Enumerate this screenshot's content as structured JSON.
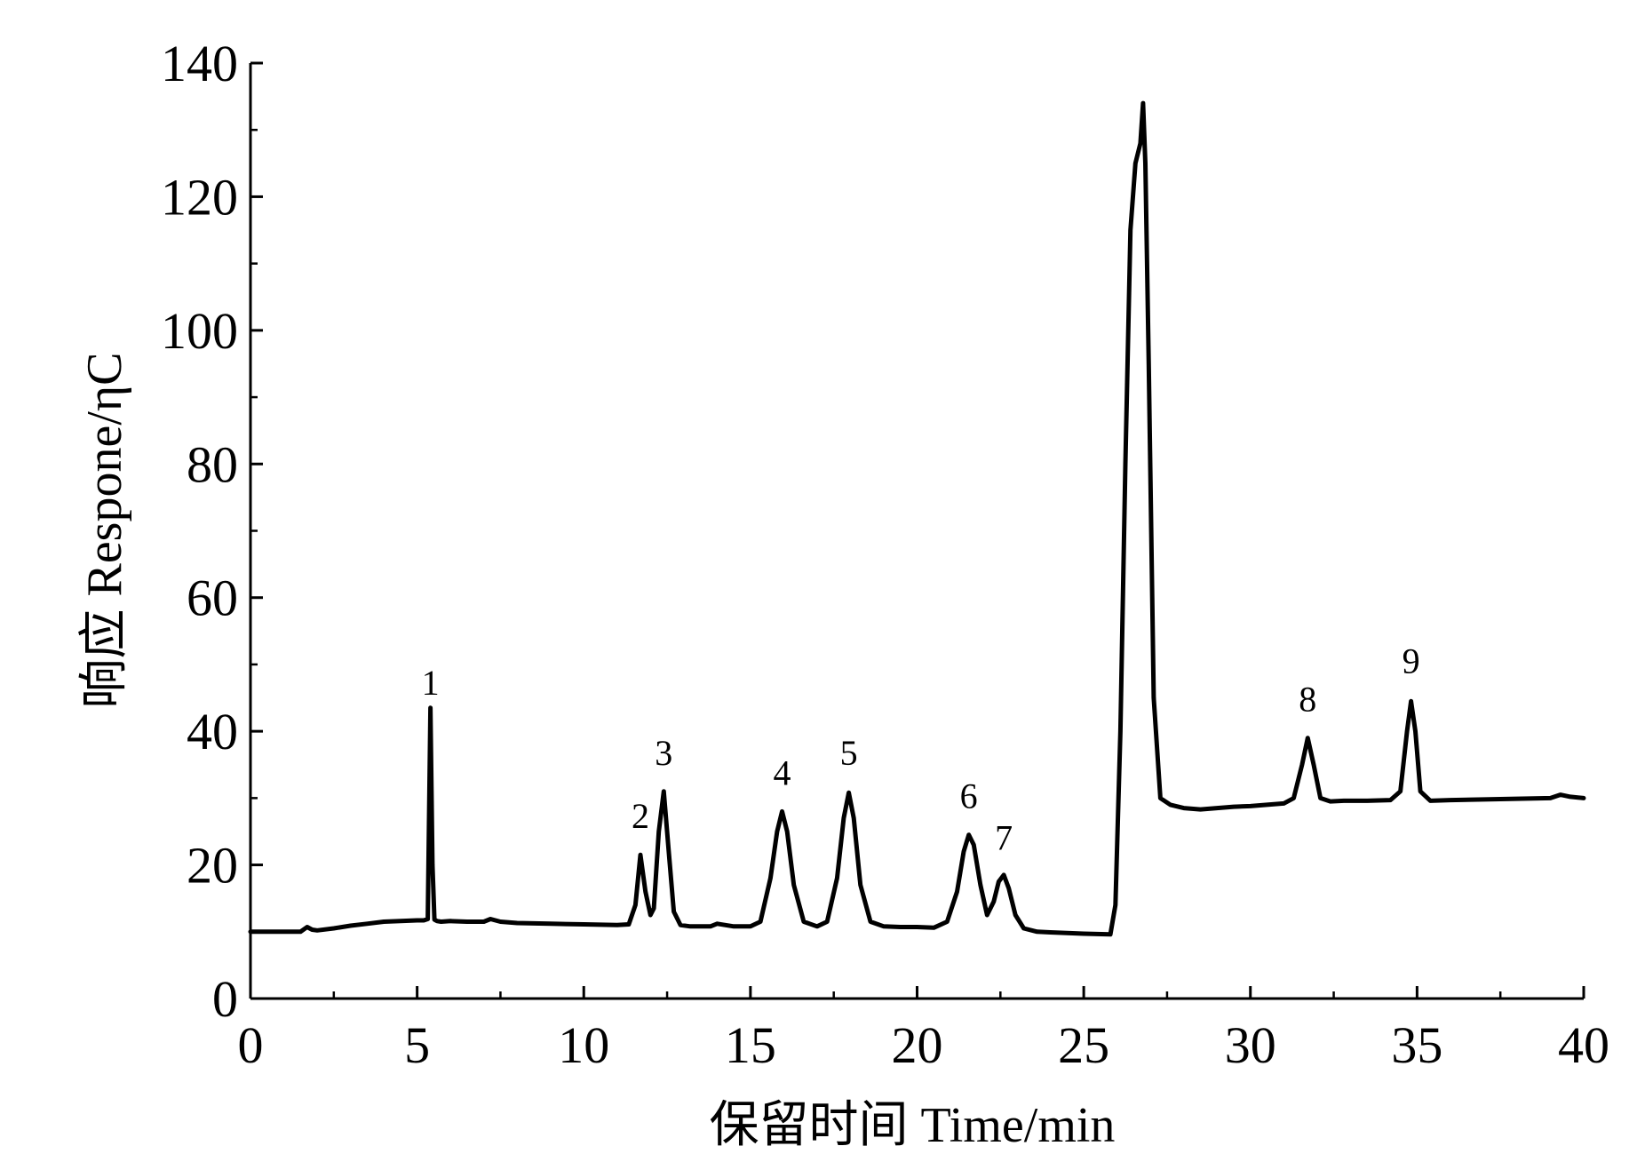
{
  "chart_data": {
    "type": "line",
    "title": "",
    "xlabel": "保留时间 Time/min",
    "ylabel": "响应 Respone/ηC",
    "xlim": [
      0,
      40
    ],
    "ylim": [
      0,
      140
    ],
    "x_ticks": [
      0,
      5,
      10,
      15,
      20,
      25,
      30,
      35,
      40
    ],
    "y_ticks": [
      0,
      20,
      40,
      60,
      80,
      100,
      120,
      140
    ],
    "grid": false,
    "legend": "none",
    "line_color": "#000000",
    "series": [
      {
        "x": [
          0,
          1.5,
          1.7,
          1.85,
          2.0,
          2.5,
          3.0,
          3.5,
          4.0,
          4.5,
          5.0,
          5.2,
          5.32,
          5.4,
          5.46,
          5.52,
          5.6,
          5.72,
          6.0,
          6.5,
          7.0,
          7.2,
          7.5,
          8,
          9,
          10,
          11,
          11.35,
          11.55,
          11.7,
          11.85,
          12.0,
          12.1,
          12.25,
          12.4,
          12.55,
          12.7,
          12.9,
          13.2,
          13.8,
          14.0,
          14.5,
          15.0,
          15.3,
          15.6,
          15.8,
          15.95,
          16.1,
          16.3,
          16.6,
          17.0,
          17.3,
          17.6,
          17.8,
          17.95,
          18.1,
          18.3,
          18.6,
          19.0,
          19.5,
          20.0,
          20.5,
          20.9,
          21.2,
          21.4,
          21.55,
          21.7,
          21.9,
          22.1,
          22.3,
          22.45,
          22.6,
          22.75,
          22.95,
          23.2,
          23.6,
          24.0,
          25.0,
          25.8,
          25.95,
          26.1,
          26.25,
          26.4,
          26.55,
          26.7,
          26.78,
          26.85,
          26.95,
          27.1,
          27.3,
          27.6,
          28.0,
          28.5,
          29.0,
          29.5,
          30.0,
          30.5,
          31.0,
          31.3,
          31.55,
          31.72,
          31.9,
          32.1,
          32.4,
          32.8,
          33.5,
          34.2,
          34.5,
          34.7,
          34.82,
          34.95,
          35.1,
          35.4,
          36,
          37,
          38,
          39,
          39.3,
          39.6,
          40
        ],
        "y": [
          10,
          10,
          10.7,
          10.3,
          10.2,
          10.5,
          10.9,
          11.2,
          11.5,
          11.6,
          11.7,
          11.7,
          11.9,
          43.5,
          20,
          11.8,
          11.6,
          11.5,
          11.6,
          11.5,
          11.5,
          11.9,
          11.5,
          11.3,
          11.2,
          11.1,
          11.0,
          11.1,
          14,
          21.5,
          16,
          12.5,
          13.5,
          25,
          31,
          22,
          13,
          11.0,
          10.8,
          10.8,
          11.2,
          10.8,
          10.8,
          11.5,
          18,
          25,
          28,
          25,
          17,
          11.5,
          10.8,
          11.5,
          18,
          27,
          30.8,
          27,
          17,
          11.5,
          10.8,
          10.7,
          10.7,
          10.6,
          11.5,
          16,
          22,
          24.5,
          23,
          17,
          12.5,
          14.5,
          17.5,
          18.5,
          16.5,
          12.5,
          10.5,
          10.0,
          9.9,
          9.7,
          9.6,
          14,
          40,
          80,
          115,
          125,
          128,
          134,
          125,
          95,
          45,
          30,
          29,
          28.5,
          28.3,
          28.5,
          28.7,
          28.8,
          29.0,
          29.2,
          30,
          35,
          39,
          35,
          30,
          29.5,
          29.6,
          29.6,
          29.7,
          31,
          40,
          44.5,
          40,
          31,
          29.6,
          29.7,
          29.8,
          29.9,
          30.0,
          30.5,
          30.2,
          30.0
        ]
      }
    ],
    "annotations": [
      {
        "text": "1",
        "x": 5.4,
        "y": 45.5
      },
      {
        "text": "2",
        "x": 11.7,
        "y": 25.5
      },
      {
        "text": "3",
        "x": 12.4,
        "y": 35.0
      },
      {
        "text": "4",
        "x": 15.95,
        "y": 32.0
      },
      {
        "text": "5",
        "x": 17.95,
        "y": 35.0
      },
      {
        "text": "6",
        "x": 21.55,
        "y": 28.5
      },
      {
        "text": "7",
        "x": 22.6,
        "y": 22.3
      },
      {
        "text": "8",
        "x": 31.72,
        "y": 43.0
      },
      {
        "text": "9",
        "x": 34.82,
        "y": 48.7
      }
    ]
  }
}
